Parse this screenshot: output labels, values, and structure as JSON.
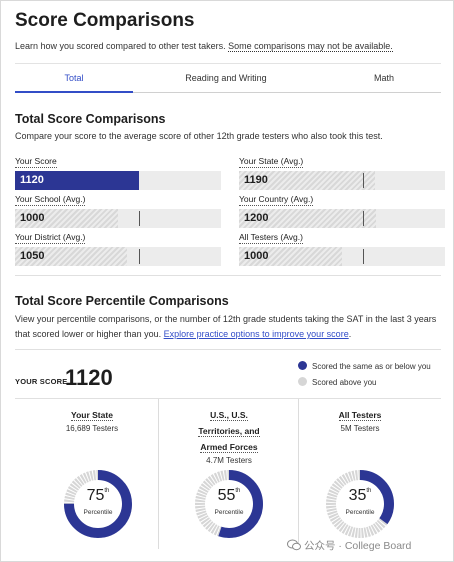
{
  "header": {
    "title": "Score Comparisons",
    "intro_text": "Learn how you scored compared to other test takers.",
    "intro_note": "Some comparisons may not be available."
  },
  "tabs": [
    {
      "label": "Total",
      "active": true
    },
    {
      "label": "Reading and Writing",
      "active": false
    },
    {
      "label": "Math",
      "active": false
    }
  ],
  "total_section": {
    "title": "Total Score Comparisons",
    "description": "Compare your score to the average score of other 12th grade testers who also took this test.",
    "bars": [
      {
        "label": "Your Score",
        "value": "1120",
        "score": 1120,
        "is_you": true
      },
      {
        "label": "Your State (Avg.)",
        "value": "1190",
        "score": 1190,
        "is_you": false
      },
      {
        "label": "Your School (Avg.)",
        "value": "1000",
        "score": 1000,
        "is_you": false
      },
      {
        "label": "Your Country (Avg.)",
        "value": "1200",
        "score": 1200,
        "is_you": false
      },
      {
        "label": "Your District (Avg.)",
        "value": "1050",
        "score": 1050,
        "is_you": false
      },
      {
        "label": "All Testers (Avg.)",
        "value": "1000",
        "score": 1000,
        "is_you": false
      }
    ],
    "score_min": 400,
    "score_max": 1600
  },
  "percentile_section": {
    "title": "Total Score Percentile Comparisons",
    "description_1": "View your percentile comparisons, or the number of 12th grade students taking the SAT in the last 3 years that scored lower or higher than you.",
    "description_link": "Explore practice options to improve your score",
    "description_end": ".",
    "your_score_label": "YOUR SCORE",
    "your_score_value": "1120",
    "legend": [
      {
        "label": "Scored the same as or below you",
        "color": "#2c3694"
      },
      {
        "label": "Scored above you",
        "color": "#d6d6d6"
      }
    ],
    "groups": [
      {
        "title": "Your State",
        "testers": "16,689 Testers",
        "percentile": "75",
        "suffix": "th",
        "caption": "Percentile",
        "fraction": 0.75
      },
      {
        "title": "U.S., U.S. Territories, and Armed Forces",
        "title_lines": [
          "U.S., U.S.",
          "Territories, and",
          "Armed Forces"
        ],
        "testers": "4.7M Testers",
        "percentile": "55",
        "suffix": "th",
        "caption": "Percentile",
        "fraction": 0.55
      },
      {
        "title": "All Testers",
        "testers": "5M Testers",
        "percentile": "35",
        "suffix": "th",
        "caption": "Percentile",
        "fraction": 0.35
      }
    ]
  },
  "colors": {
    "accent": "#324dc7",
    "bar_you": "#2c3694",
    "donut_fill": "#2c3694",
    "donut_rest": "#d6d6d6"
  },
  "watermark": {
    "text": "公众号 · College Board"
  }
}
